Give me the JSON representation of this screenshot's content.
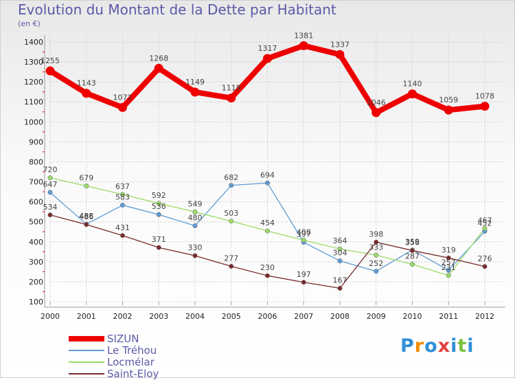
{
  "title": "Evolution du Montant de la Dette par Habitant",
  "unit_label": "(en €)",
  "logo_text": "Proxiti",
  "chart_data": {
    "type": "line",
    "title": "Evolution du Montant de la Dette par Habitant",
    "subtitle": "(en €)",
    "x": [
      "2000",
      "2001",
      "2002",
      "2003",
      "2004",
      "2005",
      "2006",
      "2007",
      "2008",
      "2009",
      "2010",
      "2011",
      "2012"
    ],
    "ylim": [
      100,
      1400
    ],
    "yticks": [
      100,
      200,
      300,
      400,
      500,
      600,
      700,
      800,
      900,
      1000,
      1100,
      1200,
      1300,
      1400
    ],
    "grid": true,
    "legend_position": "bottom-left",
    "series": [
      {
        "name": "SIZUN",
        "color": "#ee0000",
        "values": [
          1255,
          1143,
          1072,
          1268,
          1149,
          1119,
          1317,
          1381,
          1337,
          1046,
          1140,
          1059,
          1078
        ]
      },
      {
        "name": "Le Tréhou",
        "color": "#5b9bd5",
        "values": [
          647,
          488,
          583,
          536,
          480,
          682,
          694,
          397,
          304,
          252,
          359,
          257,
          452
        ]
      },
      {
        "name": "Locmélar",
        "color": "#99dd66",
        "values": [
          720,
          679,
          637,
          592,
          549,
          503,
          454,
          408,
          364,
          333,
          287,
          231,
          467
        ]
      },
      {
        "name": "Saint-Eloy",
        "color": "#7a2a2a",
        "values": [
          534,
          486,
          431,
          371,
          330,
          277,
          230,
          197,
          167,
          398,
          356,
          319,
          276
        ]
      }
    ]
  }
}
